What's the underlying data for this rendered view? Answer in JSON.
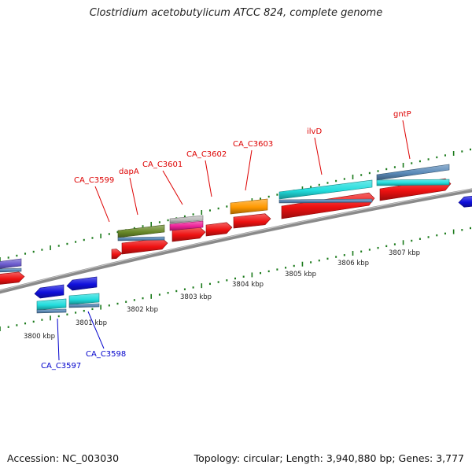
{
  "header": {
    "title": "Clostridium acetobutylicum ATCC 824, complete genome"
  },
  "footer": {
    "accession": "Accession: NC_003030",
    "topology": "Topology: circular; Length: 3,940,880 bp; Genes: 3,777"
  },
  "colors": {
    "backbone": "#8a8a8a",
    "tick": "#1a7a1a",
    "forward_label": "#dd0000",
    "reverse_label": "#0000cc",
    "cds": "#ee1111",
    "blue": "#1010dd",
    "cyan": "#22dddd",
    "steel": "#5a8ab8",
    "olive": "#6a8a2a",
    "pink": "#ee2299",
    "gray": "#bbbbbb",
    "orange": "#ff9900",
    "purple": "#6a5acd"
  },
  "scale_labels": [
    "3800 kbp",
    "3801 kbp",
    "3802 kbp",
    "3803 kbp",
    "3804 kbp",
    "3805 kbp",
    "3806 kbp",
    "3807 kbp"
  ],
  "forward_genes": [
    "CA_C3599",
    "dapA",
    "CA_C3601",
    "CA_C3602",
    "CA_C3603",
    "ilvD",
    "gntP"
  ],
  "reverse_genes": [
    "CA_C3597",
    "CA_C3598"
  ]
}
